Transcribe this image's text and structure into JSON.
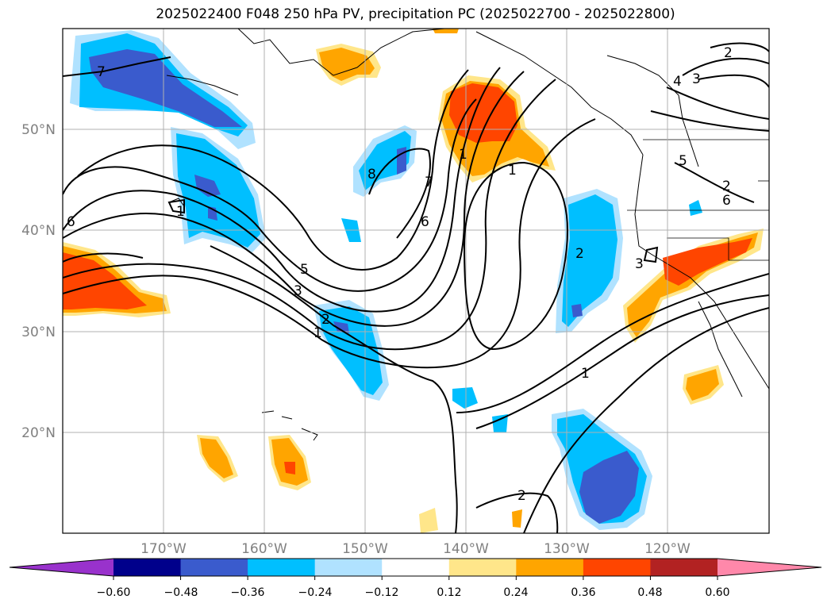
{
  "title": "2025022400 F048 250 hPa PV, precipitation PC (2025022700 - 2025022800)",
  "map": {
    "lon_ticks": [
      "170°W",
      "160°W",
      "150°W",
      "140°W",
      "130°W",
      "120°W"
    ],
    "lat_ticks": [
      "50°N",
      "40°N",
      "30°N",
      "20°N"
    ],
    "grid": true,
    "contour_labels": [
      "7",
      "1",
      "6",
      "8",
      "7",
      "6",
      "5",
      "3",
      "2",
      "1",
      "1",
      "2",
      "3",
      "4",
      "2",
      "6",
      "5",
      "3",
      "1",
      "2",
      "1",
      "2"
    ]
  },
  "colorbar": {
    "levels": [
      "−0.60",
      "−0.48",
      "−0.36",
      "−0.24",
      "−0.12",
      "0.12",
      "0.24",
      "0.36",
      "0.48",
      "0.60"
    ],
    "colors": [
      "#9932cc",
      "#00008b",
      "#3a5bcd",
      "#00bfff",
      "#b0e2ff",
      "#ffffff",
      "#ffe68a",
      "#ffa500",
      "#ff4500",
      "#b22222",
      "#ff88aa"
    ]
  }
}
